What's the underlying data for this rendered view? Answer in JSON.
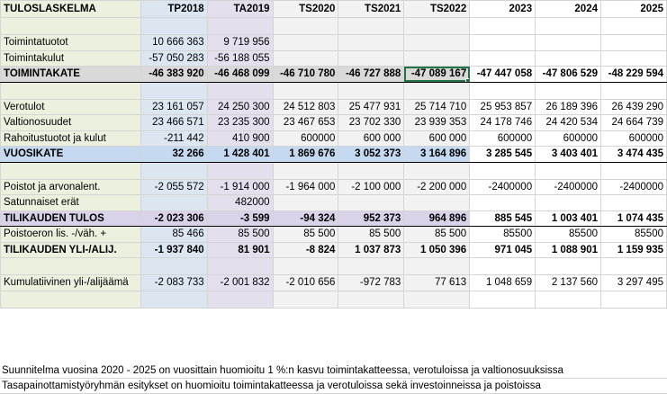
{
  "columns": [
    "TULOSLASKELMA",
    "TP2018",
    "TA2019",
    "TS2020",
    "TS2021",
    "TS2022",
    "2023",
    "2024",
    "2025"
  ],
  "rows": [
    {
      "cells": [
        "",
        "",
        "",
        "",
        "",
        "",
        "",
        "",
        ""
      ],
      "style": "spacer"
    },
    {
      "cells": [
        "Toimintatuotot",
        "10 666 363",
        "9 719 956",
        "",
        "",
        "",
        "",
        "",
        ""
      ],
      "style": ""
    },
    {
      "cells": [
        "Toimintakulut",
        "-57 050 283",
        "-56 188 055",
        "",
        "",
        "",
        "",
        "",
        ""
      ],
      "style": ""
    },
    {
      "cells": [
        "TOIMINTAKATE",
        "-46 383 920",
        "-46 468 099",
        "-46 710 780",
        "-46 727 888",
        "-47 089 167",
        "-47 447 058",
        "-47 806 529",
        "-48 229 594"
      ],
      "style": "bold grey topline botline"
    },
    {
      "cells": [
        "",
        "",
        "",
        "",
        "",
        "",
        "",
        "",
        ""
      ],
      "style": "spacer"
    },
    {
      "cells": [
        "Verotulot",
        "23 161 057",
        "24 250 300",
        "24 512 803",
        "25 477 931",
        "25 714 710",
        "25 953 857",
        "26 189 396",
        "26 439 290"
      ],
      "style": ""
    },
    {
      "cells": [
        "Valtionosuudet",
        "23 466 571",
        "23 235 300",
        "23 467 653",
        "23 702 330",
        "23 939 353",
        "24 178 746",
        "24 420 534",
        "24 664 739"
      ],
      "style": ""
    },
    {
      "cells": [
        "Rahoitustuotot ja kulut",
        "-211 442",
        "410 900",
        "600000",
        "600 000",
        "600 000",
        "600000",
        "600000",
        "600000"
      ],
      "style": ""
    },
    {
      "cells": [
        "VUOSIKATE",
        "32 266",
        "1 428 401",
        "1 869 676",
        "3 052 373",
        "3 164 896",
        "3 285 545",
        "3 403 401",
        "3 474 435"
      ],
      "style": "bold blue topline botline"
    },
    {
      "cells": [
        "",
        "",
        "",
        "",
        "",
        "",
        "",
        "",
        ""
      ],
      "style": "spacer"
    },
    {
      "cells": [
        "Poistot ja arvonalent.",
        "-2 055 572",
        "-1 914 000",
        "-1 964 000",
        "-2 100 000",
        "-2 200 000",
        "-2400000",
        "-2400000",
        "-2400000"
      ],
      "style": ""
    },
    {
      "cells": [
        "Satunnaiset erät",
        "",
        "482000",
        "",
        "",
        "",
        "",
        "",
        ""
      ],
      "style": ""
    },
    {
      "cells": [
        "TILIKAUDEN TULOS",
        "-2 023 306",
        "-3 599",
        "-94 324",
        "952 373",
        "964 896",
        "885 545",
        "1 003 401",
        "1 074 435"
      ],
      "style": "bold purple topline botline"
    },
    {
      "cells": [
        "Poistoeron lis. -/väh. +",
        "85 466",
        "85 500",
        "85 500",
        "85 500",
        "85 500",
        "85500",
        "85500",
        "85500"
      ],
      "style": ""
    },
    {
      "cells": [
        "TILIKAUDEN YLI-/ALIJ.",
        "-1 937 840",
        "81 901",
        "-8 824",
        "1 037 873",
        "1 050 396",
        "971 045",
        "1 088 901",
        "1 159 935"
      ],
      "style": "bold"
    },
    {
      "cells": [
        "",
        "",
        "",
        "",
        "",
        "",
        "",
        "",
        ""
      ],
      "style": "spacer"
    },
    {
      "cells": [
        "Kumulatiivinen yli-/alijäämä",
        "-2 083 733",
        "-2 001 832",
        "-2 010 656",
        "-972 783",
        "77 613",
        "1 048 659",
        "2 137 560",
        "3 297 495"
      ],
      "style": ""
    },
    {
      "cells": [
        "",
        "",
        "",
        "",
        "",
        "",
        "",
        "",
        ""
      ],
      "style": "spacer"
    }
  ],
  "notes": [
    "Suunnitelma vuosina 2020 - 2025 on vuosittain huomioitu 1 %:n kasvu toimintakatteessa, verotuloissa ja valtionosuuksissa",
    "Tasapainottamistyöryhmän esitykset on huomioitu toimintakatteessa ja verotuloissa sekä investoinneissa ja poistoissa"
  ]
}
